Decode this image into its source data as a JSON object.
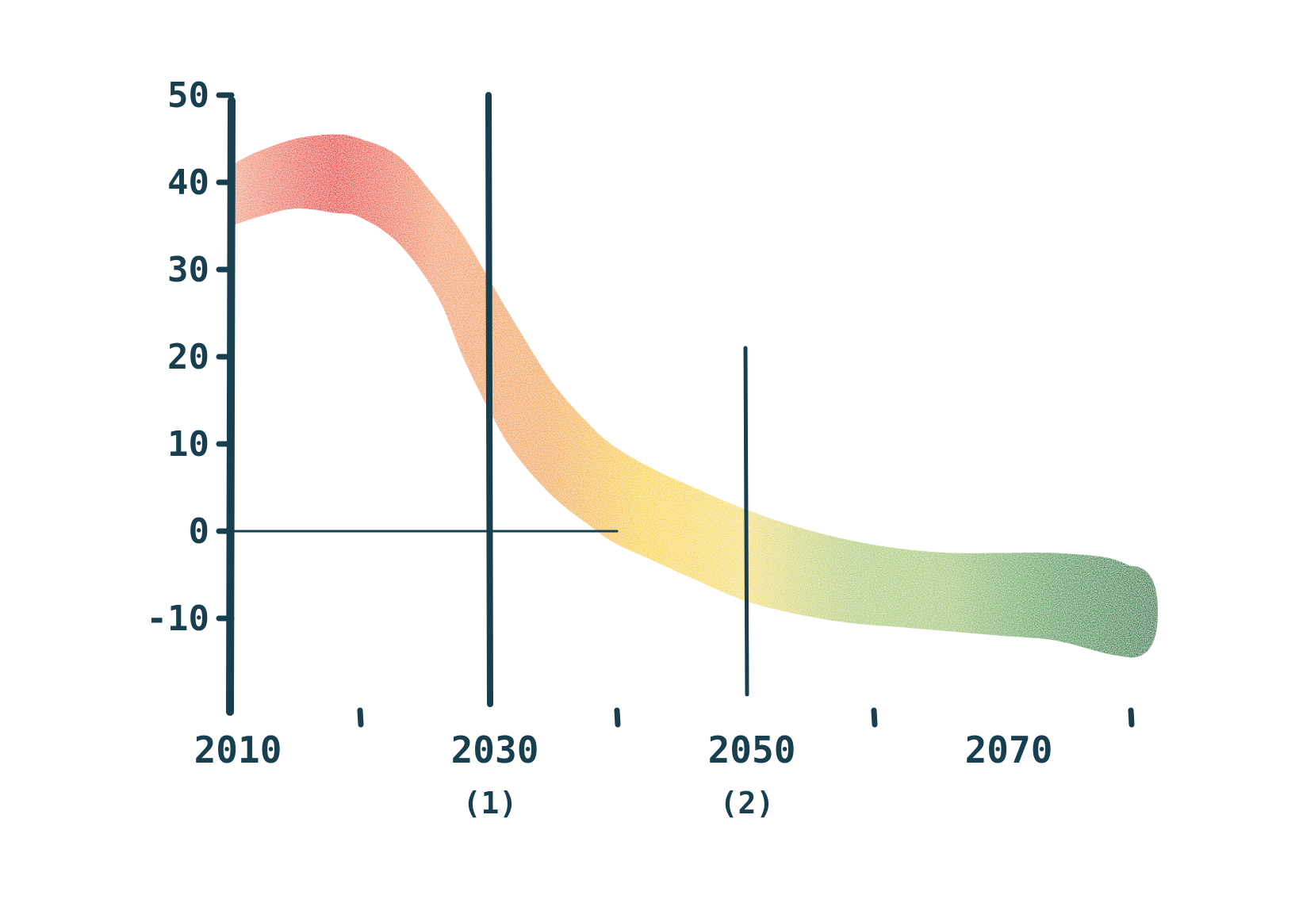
{
  "colors": {
    "axis": "#173f4f",
    "band_gradient": [
      "#f2a98a",
      "#e8352d",
      "#f4a06d",
      "#f2a94f",
      "#fad535",
      "#f5e073",
      "#b6cf7a",
      "#a2c874",
      "#4f9d53",
      "#157737"
    ]
  },
  "chart_data": {
    "type": "area",
    "title": "",
    "xlabel": "",
    "ylabel": "",
    "xlim": [
      2010,
      2080
    ],
    "ylim": [
      -20,
      50
    ],
    "grid": false,
    "y_ticks": [
      "50",
      "40",
      "30",
      "20",
      "10",
      "0",
      "-10"
    ],
    "y_tick_values": [
      50,
      40,
      30,
      20,
      10,
      0,
      -10
    ],
    "x_ticks": [
      {
        "value": 2010,
        "label": "2010",
        "sub": ""
      },
      {
        "value": 2020,
        "label": "",
        "sub": ""
      },
      {
        "value": 2030,
        "label": "2030",
        "sub": "(1)"
      },
      {
        "value": 2040,
        "label": "",
        "sub": ""
      },
      {
        "value": 2050,
        "label": "2050",
        "sub": "(2)"
      },
      {
        "value": 2060,
        "label": "",
        "sub": ""
      },
      {
        "value": 2070,
        "label": "2070",
        "sub": ""
      },
      {
        "value": 2080,
        "label": "",
        "sub": ""
      }
    ],
    "reference_lines": [
      {
        "x": 2030,
        "y_top": 50
      },
      {
        "x": 2050,
        "y_top": 21
      }
    ],
    "zero_line_end_x": 2040,
    "series": [
      {
        "x": [
          2010,
          2012,
          2015,
          2018,
          2020,
          2023,
          2026,
          2028,
          2030,
          2032,
          2035,
          2038,
          2040,
          2043,
          2046,
          2050,
          2054,
          2058,
          2062,
          2066,
          2070,
          2074,
          2078,
          2080
        ],
        "upper": [
          42,
          43.5,
          45,
          45.5,
          45,
          43,
          38,
          34,
          29,
          24,
          17,
          12,
          9.5,
          7,
          5,
          2.5,
          0.5,
          -1,
          -2,
          -2.5,
          -2.5,
          -2.5,
          -3,
          -4
        ],
        "lower": [
          35,
          36,
          37,
          36.5,
          36,
          33,
          27,
          20,
          14,
          9,
          4,
          0.5,
          -1.5,
          -3.5,
          -5.5,
          -8,
          -9.5,
          -10.5,
          -11,
          -11.5,
          -12,
          -12.5,
          -14,
          -14.5
        ]
      }
    ]
  }
}
